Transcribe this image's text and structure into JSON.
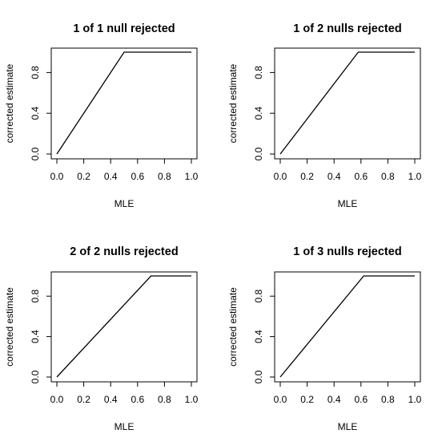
{
  "chart_data": [
    {
      "type": "line",
      "title": "1 of 1 null rejected",
      "xlabel": "MLE",
      "ylabel": "corrected estimate",
      "xlim": [
        0.0,
        1.0
      ],
      "ylim": [
        0.0,
        1.0
      ],
      "x_ticks": [
        "0.0",
        "0.2",
        "0.4",
        "0.6",
        "0.8",
        "1.0"
      ],
      "y_ticks": [
        "0.0",
        "0.4",
        "0.8"
      ],
      "grid": false,
      "line_color": "#000000",
      "x": [
        0.0,
        0.5,
        1.0
      ],
      "y": [
        0.0,
        1.0,
        1.0
      ]
    },
    {
      "type": "line",
      "title": "1 of 2 nulls rejected",
      "xlabel": "MLE",
      "ylabel": "corrected estimate",
      "xlim": [
        0.0,
        1.0
      ],
      "ylim": [
        0.0,
        1.0
      ],
      "x_ticks": [
        "0.0",
        "0.2",
        "0.4",
        "0.6",
        "0.8",
        "1.0"
      ],
      "y_ticks": [
        "0.0",
        "0.4",
        "0.8"
      ],
      "grid": false,
      "line_color": "#000000",
      "x": [
        0.0,
        0.58,
        1.0
      ],
      "y": [
        0.0,
        1.0,
        1.0
      ]
    },
    {
      "type": "line",
      "title": "2 of 2 nulls rejected",
      "xlabel": "MLE",
      "ylabel": "corrected estimate",
      "xlim": [
        0.0,
        1.0
      ],
      "ylim": [
        0.0,
        1.0
      ],
      "x_ticks": [
        "0.0",
        "0.2",
        "0.4",
        "0.6",
        "0.8",
        "1.0"
      ],
      "y_ticks": [
        "0.0",
        "0.4",
        "0.8"
      ],
      "grid": false,
      "line_color": "#000000",
      "x": [
        0.0,
        0.7,
        1.0
      ],
      "y": [
        0.0,
        1.0,
        1.0
      ]
    },
    {
      "type": "line",
      "title": "1 of 3 nulls rejected",
      "xlabel": "MLE",
      "ylabel": "corrected estimate",
      "xlim": [
        0.0,
        1.0
      ],
      "ylim": [
        0.0,
        1.0
      ],
      "x_ticks": [
        "0.0",
        "0.2",
        "0.4",
        "0.6",
        "0.8",
        "1.0"
      ],
      "y_ticks": [
        "0.0",
        "0.4",
        "0.8"
      ],
      "grid": false,
      "line_color": "#000000",
      "x": [
        0.0,
        0.62,
        1.0
      ],
      "y": [
        0.0,
        1.0,
        1.0
      ]
    }
  ]
}
